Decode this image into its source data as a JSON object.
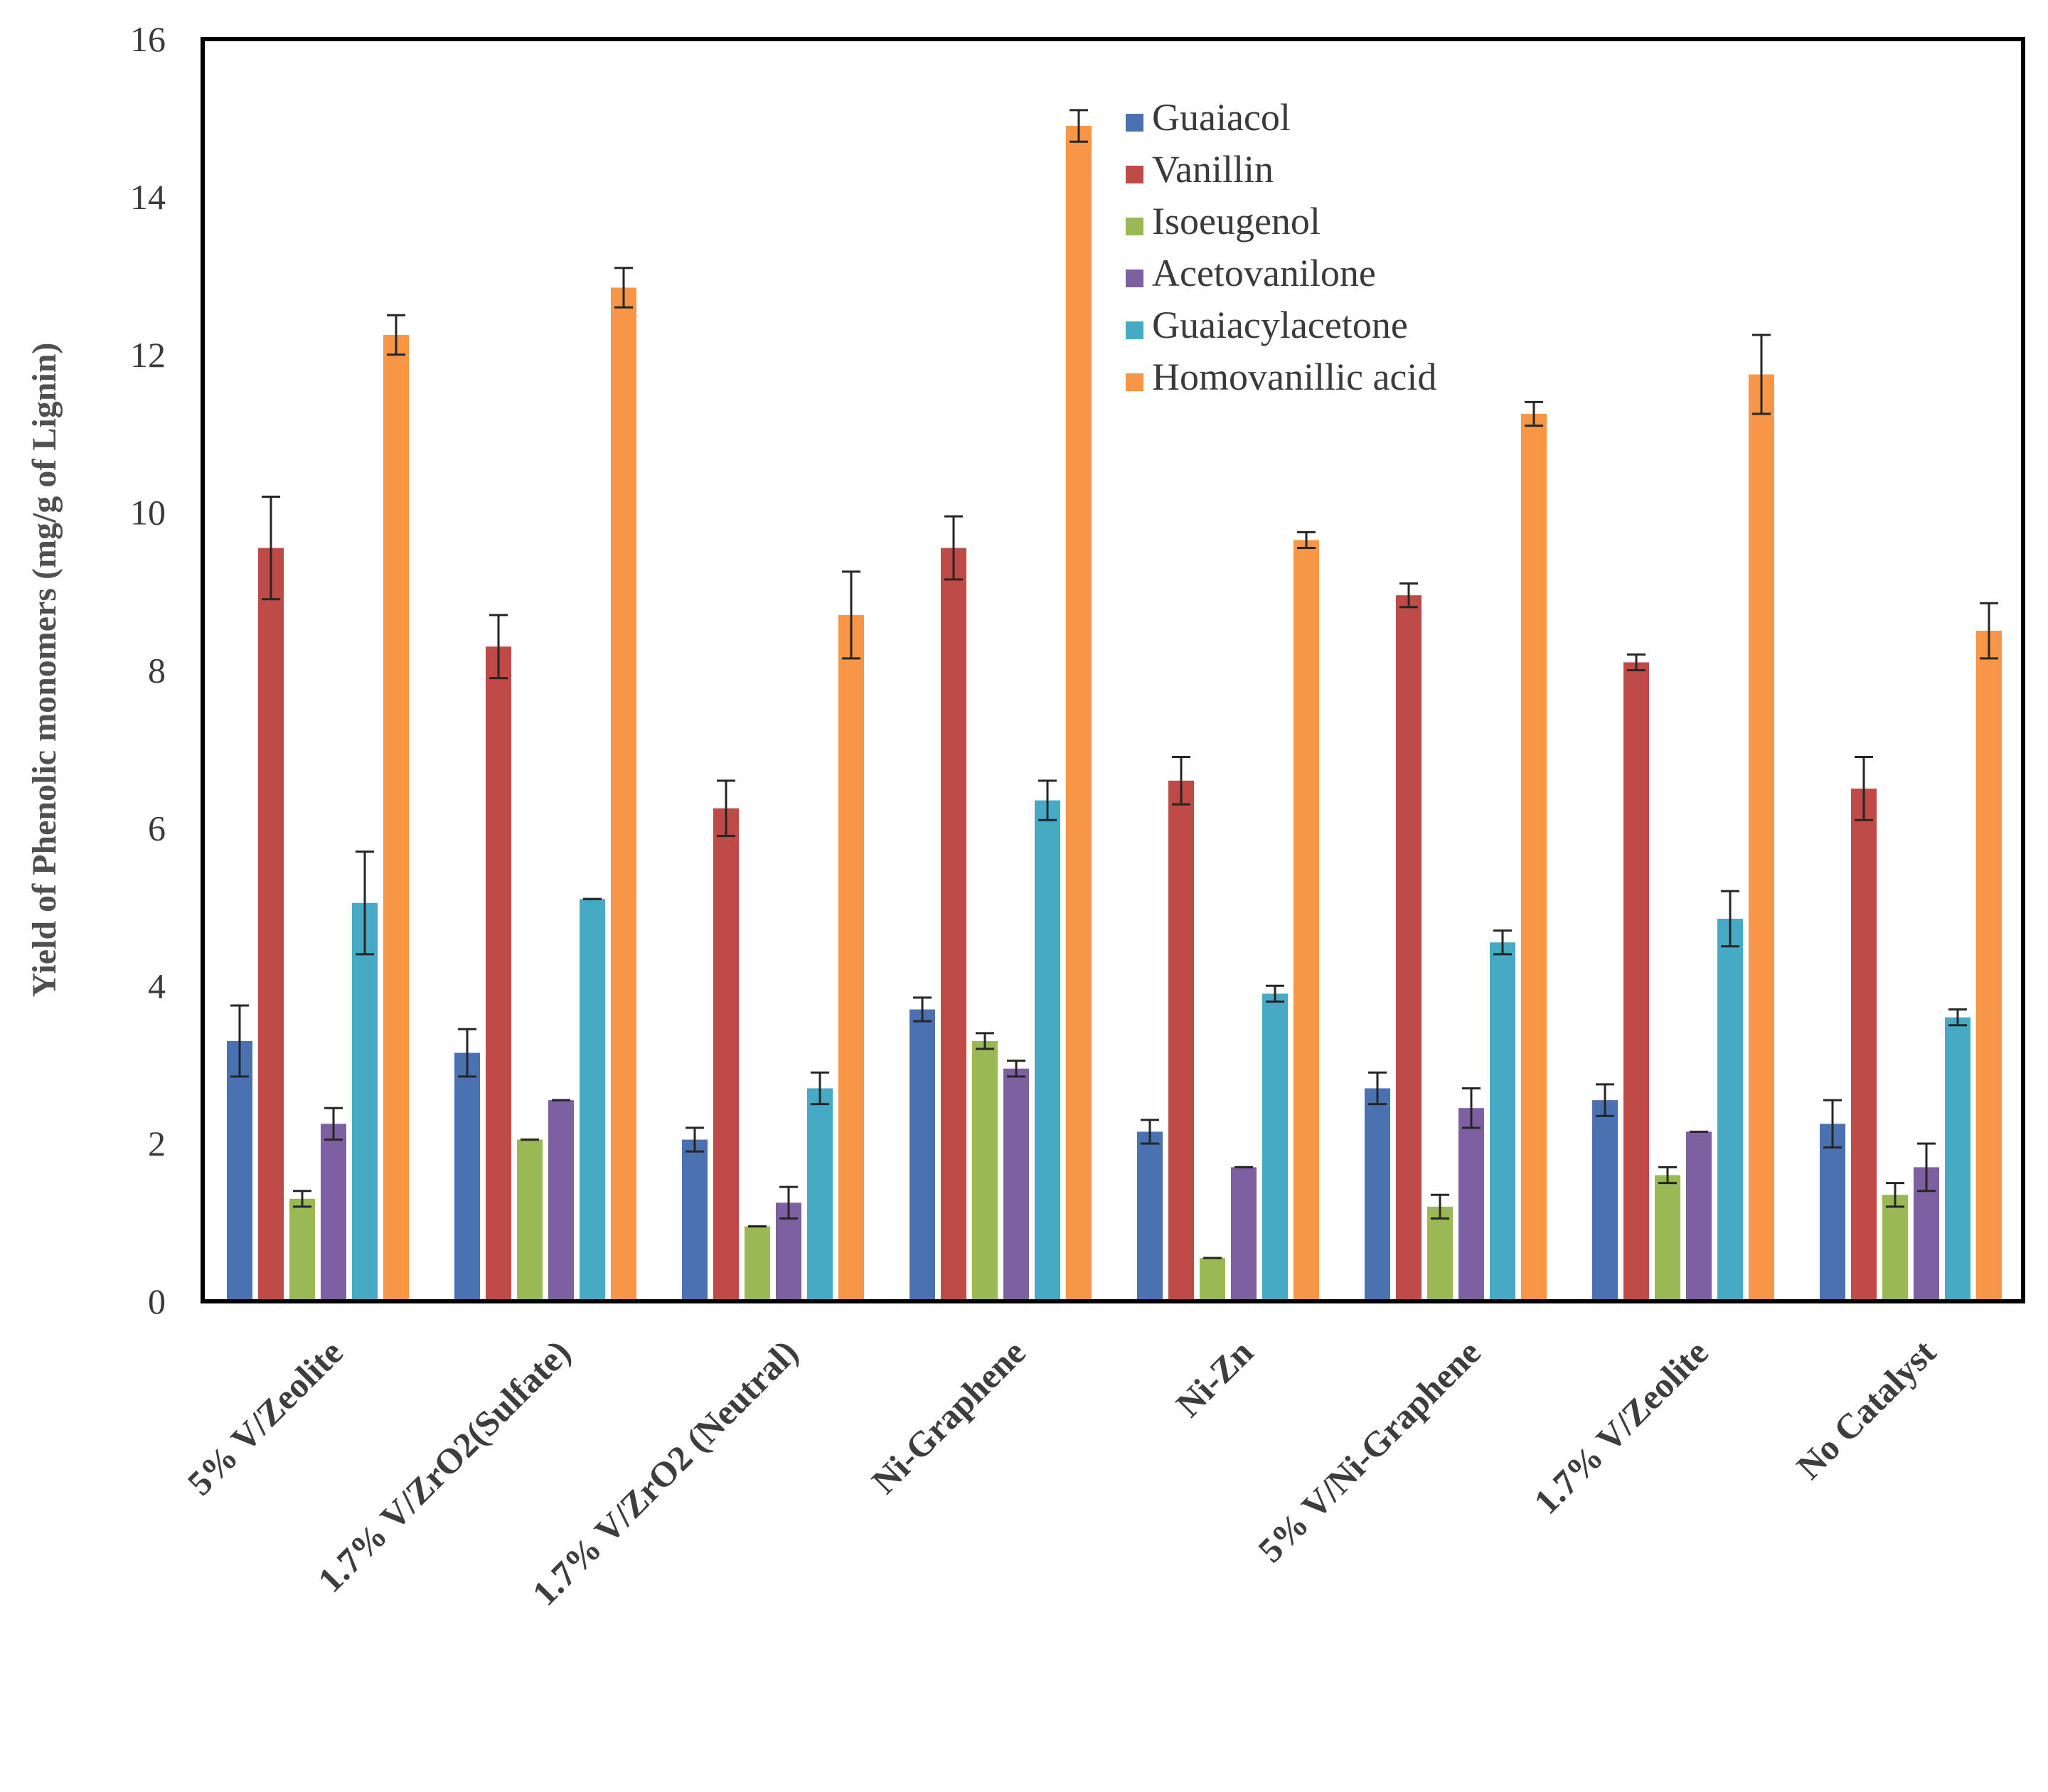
{
  "chart_data": {
    "type": "bar",
    "title": "",
    "xlabel": "",
    "ylabel": "Yield of Phenolic monomers (mg/g of Lignin)",
    "ylim": [
      0,
      16
    ],
    "yticks": [
      0,
      2,
      4,
      6,
      8,
      10,
      12,
      14,
      16
    ],
    "grid": false,
    "legend_position": "top-center",
    "categories": [
      "5% V/Zeolite",
      "1.7% V/ZrO2(Sulfate)",
      "1.7% V/ZrO2 (Neutral)",
      "Ni-Graphene",
      "Ni-Zn",
      "5% V/Ni-Graphene",
      "1.7% V/Zeolite",
      "No Catalyst"
    ],
    "series": [
      {
        "name": "Guaiacol",
        "color": "#4a72b0",
        "values": [
          3.3,
          3.15,
          2.05,
          3.7,
          2.15,
          2.7,
          2.55,
          2.25
        ],
        "errors": [
          0.45,
          0.3,
          0.15,
          0.15,
          0.15,
          0.2,
          0.2,
          0.3
        ]
      },
      {
        "name": "Vanillin",
        "color": "#be4b48",
        "values": [
          9.55,
          8.3,
          6.25,
          9.55,
          6.6,
          8.95,
          8.1,
          6.5
        ],
        "errors": [
          0.65,
          0.4,
          0.35,
          0.4,
          0.3,
          0.15,
          0.1,
          0.4
        ]
      },
      {
        "name": "Isoeugenol",
        "color": "#98b954",
        "values": [
          1.3,
          2.05,
          0.95,
          3.3,
          0.55,
          1.2,
          1.6,
          1.35
        ],
        "errors": [
          0.1,
          0.0,
          0.0,
          0.1,
          0.0,
          0.15,
          0.1,
          0.15
        ]
      },
      {
        "name": "Acetovanilone",
        "color": "#7d60a0",
        "values": [
          2.25,
          2.55,
          1.25,
          2.95,
          1.7,
          2.45,
          2.15,
          1.7
        ],
        "errors": [
          0.2,
          0.0,
          0.2,
          0.1,
          0.0,
          0.25,
          0.0,
          0.3
        ]
      },
      {
        "name": "Guaiacylacetone",
        "color": "#46aac5",
        "values": [
          5.05,
          5.1,
          2.7,
          6.35,
          3.9,
          4.55,
          4.85,
          3.6
        ],
        "errors": [
          0.65,
          0.0,
          0.2,
          0.25,
          0.1,
          0.15,
          0.35,
          0.1
        ]
      },
      {
        "name": "Homovanillic acid",
        "color": "#f79646",
        "values": [
          12.25,
          12.85,
          8.7,
          14.9,
          9.65,
          11.25,
          11.75,
          8.5
        ],
        "errors": [
          0.25,
          0.25,
          0.55,
          0.2,
          0.1,
          0.15,
          0.5,
          0.35
        ]
      }
    ]
  }
}
